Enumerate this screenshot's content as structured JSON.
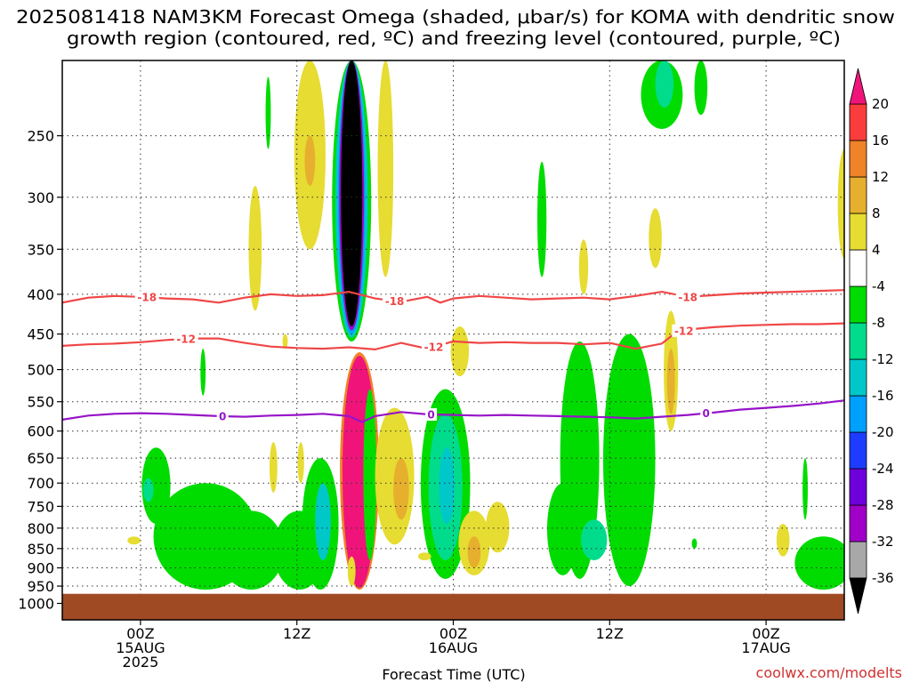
{
  "chart_data": {
    "type": "time-height contour",
    "title_line1": "2025081418 NAM3KM Forecast Omega (shaded, μbar/s) for KOMA with dendritic snow",
    "title_line2": "growth region (contoured, red, ºC) and freezing level (contoured, purple, ºC)",
    "xlabel": "Forecast Time (UTC)",
    "credit": "coolwx.com/modelts",
    "y_axis": {
      "scale": "log-pressure, inverted",
      "range_hPa": [
        1050,
        200
      ],
      "ticks": [
        250,
        300,
        350,
        400,
        450,
        500,
        550,
        600,
        650,
        700,
        750,
        800,
        850,
        900,
        950,
        1000
      ]
    },
    "x_axis": {
      "range_hours": [
        0,
        60
      ],
      "unit": "forecast hour from 2025081418",
      "gridlines_hours": [
        6,
        18,
        30,
        42,
        54
      ],
      "labels": [
        {
          "hour": 6,
          "lines": [
            "00Z",
            "15AUG",
            "2025"
          ]
        },
        {
          "hour": 18,
          "lines": [
            "12Z"
          ]
        },
        {
          "hour": 30,
          "lines": [
            "00Z",
            "16AUG"
          ]
        },
        {
          "hour": 42,
          "lines": [
            "12Z"
          ]
        },
        {
          "hour": 54,
          "lines": [
            "00Z",
            "17AUG"
          ]
        }
      ]
    },
    "colorbar": {
      "levels": [
        -36,
        -32,
        -28,
        -24,
        -20,
        -16,
        -12,
        -8,
        -4,
        4,
        8,
        12,
        16,
        20
      ],
      "bands": [
        {
          "from": -36,
          "to": -32,
          "color": "#a8a8a8"
        },
        {
          "from": -32,
          "to": -28,
          "color": "#a000c8"
        },
        {
          "from": -28,
          "to": -24,
          "color": "#6e00dc"
        },
        {
          "from": -24,
          "to": -20,
          "color": "#1e3cff"
        },
        {
          "from": -20,
          "to": -16,
          "color": "#00a0ff"
        },
        {
          "from": -16,
          "to": -12,
          "color": "#00c8c8"
        },
        {
          "from": -12,
          "to": -8,
          "color": "#00dc8c"
        },
        {
          "from": -8,
          "to": -4,
          "color": "#00dc00"
        },
        {
          "from": -4,
          "to": 4,
          "color": "#ffffff"
        },
        {
          "from": 4,
          "to": 8,
          "color": "#e6dc32"
        },
        {
          "from": 8,
          "to": 12,
          "color": "#e6af2d"
        },
        {
          "from": 12,
          "to": 16,
          "color": "#f08228"
        },
        {
          "from": 16,
          "to": 20,
          "color": "#fa3c3c"
        }
      ],
      "under_color": "#000000",
      "over_color": "#f0147a"
    },
    "omega_areas": [
      {
        "hour": 7.2,
        "p_top": 630,
        "p_bottom": 790,
        "half_width_h": 1.1,
        "value": -6
      },
      {
        "hour": 6.6,
        "p_top": 690,
        "p_bottom": 740,
        "half_width_h": 0.4,
        "value": -10
      },
      {
        "hour": 11.0,
        "p_top": 700,
        "p_bottom": 960,
        "half_width_h": 4.0,
        "value": -6
      },
      {
        "hour": 14.5,
        "p_top": 760,
        "p_bottom": 960,
        "half_width_h": 2.5,
        "value": -6
      },
      {
        "hour": 18.2,
        "p_top": 760,
        "p_bottom": 960,
        "half_width_h": 2.0,
        "value": -6
      },
      {
        "hour": 19.8,
        "p_top": 650,
        "p_bottom": 960,
        "half_width_h": 1.4,
        "value": -8
      },
      {
        "hour": 20.0,
        "p_top": 700,
        "p_bottom": 880,
        "half_width_h": 0.6,
        "value": -14
      },
      {
        "hour": 22.2,
        "p_top": 200,
        "p_bottom": 460,
        "half_width_h": 1.5,
        "value": -8
      },
      {
        "hour": 22.2,
        "p_top": 200,
        "p_bottom": 455,
        "half_width_h": 1.25,
        "value": -14
      },
      {
        "hour": 22.2,
        "p_top": 200,
        "p_bottom": 450,
        "half_width_h": 1.05,
        "value": -20
      },
      {
        "hour": 22.2,
        "p_top": 200,
        "p_bottom": 445,
        "half_width_h": 0.95,
        "value": -30
      },
      {
        "hour": 22.2,
        "p_top": 200,
        "p_bottom": 440,
        "half_width_h": 0.82,
        "value": -40
      },
      {
        "hour": 22.8,
        "p_top": 475,
        "p_bottom": 960,
        "half_width_h": 1.5,
        "value": 14
      },
      {
        "hour": 22.8,
        "p_top": 480,
        "p_bottom": 955,
        "half_width_h": 1.3,
        "value": 24
      },
      {
        "hour": 23.6,
        "p_top": 530,
        "p_bottom": 880,
        "half_width_h": 0.5,
        "value": -6
      },
      {
        "hour": 25.5,
        "p_top": 560,
        "p_bottom": 840,
        "half_width_h": 1.5,
        "value": 6
      },
      {
        "hour": 26.0,
        "p_top": 650,
        "p_bottom": 780,
        "half_width_h": 0.6,
        "value": 10
      },
      {
        "hour": 29.4,
        "p_top": 530,
        "p_bottom": 930,
        "half_width_h": 1.9,
        "value": -6
      },
      {
        "hour": 29.4,
        "p_top": 570,
        "p_bottom": 880,
        "half_width_h": 1.3,
        "value": -11
      },
      {
        "hour": 29.5,
        "p_top": 630,
        "p_bottom": 790,
        "half_width_h": 0.6,
        "value": -15
      },
      {
        "hour": 30.5,
        "p_top": 440,
        "p_bottom": 510,
        "half_width_h": 0.7,
        "value": 6
      },
      {
        "hour": 31.6,
        "p_top": 760,
        "p_bottom": 920,
        "half_width_h": 1.2,
        "value": 6
      },
      {
        "hour": 31.6,
        "p_top": 820,
        "p_bottom": 900,
        "half_width_h": 0.5,
        "value": 11
      },
      {
        "hour": 33.4,
        "p_top": 740,
        "p_bottom": 860,
        "half_width_h": 0.9,
        "value": 5
      },
      {
        "hour": 36.8,
        "p_top": 270,
        "p_bottom": 380,
        "half_width_h": 0.35,
        "value": -6
      },
      {
        "hour": 39.7,
        "p_top": 460,
        "p_bottom": 930,
        "half_width_h": 1.5,
        "value": -6
      },
      {
        "hour": 38.4,
        "p_top": 700,
        "p_bottom": 920,
        "half_width_h": 1.2,
        "value": -6
      },
      {
        "hour": 43.5,
        "p_top": 450,
        "p_bottom": 950,
        "half_width_h": 2.0,
        "value": -6
      },
      {
        "hour": 40.8,
        "p_top": 780,
        "p_bottom": 880,
        "half_width_h": 1.0,
        "value": -10
      },
      {
        "hour": 46.7,
        "p_top": 420,
        "p_bottom": 600,
        "half_width_h": 0.55,
        "value": 5
      },
      {
        "hour": 46.7,
        "p_top": 470,
        "p_bottom": 570,
        "half_width_h": 0.3,
        "value": 9
      },
      {
        "hour": 45.5,
        "p_top": 310,
        "p_bottom": 370,
        "half_width_h": 0.5,
        "value": 5
      },
      {
        "hour": 40.0,
        "p_top": 340,
        "p_bottom": 400,
        "half_width_h": 0.35,
        "value": 5
      },
      {
        "hour": 46.0,
        "p_top": 200,
        "p_bottom": 245,
        "half_width_h": 1.6,
        "value": -6
      },
      {
        "hour": 46.2,
        "p_top": 200,
        "p_bottom": 230,
        "half_width_h": 0.7,
        "value": -12
      },
      {
        "hour": 49.0,
        "p_top": 200,
        "p_bottom": 235,
        "half_width_h": 0.5,
        "value": -6
      },
      {
        "hour": 48.5,
        "p_top": 825,
        "p_bottom": 850,
        "half_width_h": 0.2,
        "value": -6
      },
      {
        "hour": 55.3,
        "p_top": 790,
        "p_bottom": 870,
        "half_width_h": 0.5,
        "value": 5
      },
      {
        "hour": 58.4,
        "p_top": 820,
        "p_bottom": 960,
        "half_width_h": 2.2,
        "value": -6
      },
      {
        "hour": 57.0,
        "p_top": 650,
        "p_bottom": 780,
        "half_width_h": 0.2,
        "value": -6
      },
      {
        "hour": 60.0,
        "p_top": 260,
        "p_bottom": 360,
        "half_width_h": 0.5,
        "value": 5
      },
      {
        "hour": 19.0,
        "p_top": 200,
        "p_bottom": 350,
        "half_width_h": 1.2,
        "value": 5
      },
      {
        "hour": 19.0,
        "p_top": 250,
        "p_bottom": 290,
        "half_width_h": 0.4,
        "value": 9
      },
      {
        "hour": 24.8,
        "p_top": 200,
        "p_bottom": 380,
        "half_width_h": 0.6,
        "value": 5
      },
      {
        "hour": 15.8,
        "p_top": 210,
        "p_bottom": 260,
        "half_width_h": 0.2,
        "value": -6
      },
      {
        "hour": 14.8,
        "p_top": 290,
        "p_bottom": 420,
        "half_width_h": 0.5,
        "value": 5
      },
      {
        "hour": 16.2,
        "p_top": 620,
        "p_bottom": 720,
        "half_width_h": 0.3,
        "value": 5
      },
      {
        "hour": 17.1,
        "p_top": 450,
        "p_bottom": 470,
        "half_width_h": 0.2,
        "value": 5
      },
      {
        "hour": 18.3,
        "p_top": 620,
        "p_bottom": 700,
        "half_width_h": 0.25,
        "value": 5
      },
      {
        "hour": 5.5,
        "p_top": 820,
        "p_bottom": 840,
        "half_width_h": 0.5,
        "value": 5
      },
      {
        "hour": 27.8,
        "p_top": 860,
        "p_bottom": 880,
        "half_width_h": 0.5,
        "value": 5
      },
      {
        "hour": 22.2,
        "p_top": 870,
        "p_bottom": 950,
        "half_width_h": 0.3,
        "value": 5
      },
      {
        "hour": 10.8,
        "p_top": 470,
        "p_bottom": 540,
        "half_width_h": 0.2,
        "value": -6
      }
    ],
    "contours": [
      {
        "kind": "dendritic",
        "value": -18,
        "label": "-18",
        "color": "#f04646",
        "points": [
          [
            0,
            410
          ],
          [
            2,
            404
          ],
          [
            4,
            402
          ],
          [
            6,
            403
          ],
          [
            8,
            405
          ],
          [
            10,
            406
          ],
          [
            12,
            410
          ],
          [
            14,
            404
          ],
          [
            16,
            400
          ],
          [
            18,
            402
          ],
          [
            20,
            401
          ],
          [
            22,
            397
          ],
          [
            24,
            405
          ],
          [
            26,
            409
          ],
          [
            28,
            403
          ],
          [
            29,
            410
          ],
          [
            30,
            405
          ],
          [
            32,
            402
          ],
          [
            34,
            404
          ],
          [
            36,
            406
          ],
          [
            38,
            405
          ],
          [
            40,
            404
          ],
          [
            42,
            406
          ],
          [
            44,
            402
          ],
          [
            46,
            397
          ],
          [
            48,
            403
          ],
          [
            50,
            401
          ],
          [
            52,
            399
          ],
          [
            54,
            398
          ],
          [
            56,
            397
          ],
          [
            58,
            396
          ],
          [
            60,
            395
          ]
        ],
        "labels_at_hours": [
          6.5,
          25.5,
          48
        ]
      },
      {
        "kind": "dendritic",
        "value": -12,
        "label": "-12",
        "color": "#f04646",
        "points": [
          [
            0,
            466
          ],
          [
            2,
            464
          ],
          [
            4,
            463
          ],
          [
            6,
            461
          ],
          [
            8,
            458
          ],
          [
            10,
            456
          ],
          [
            12,
            456
          ],
          [
            14,
            462
          ],
          [
            16,
            467
          ],
          [
            18,
            469
          ],
          [
            20,
            470
          ],
          [
            22,
            468
          ],
          [
            24,
            471
          ],
          [
            26,
            462
          ],
          [
            28,
            470
          ],
          [
            30,
            460
          ],
          [
            32,
            462
          ],
          [
            34,
            461
          ],
          [
            36,
            462
          ],
          [
            38,
            462
          ],
          [
            40,
            464
          ],
          [
            42,
            462
          ],
          [
            44,
            470
          ],
          [
            46,
            463
          ],
          [
            47,
            449
          ],
          [
            48,
            444
          ],
          [
            50,
            441
          ],
          [
            52,
            439
          ],
          [
            54,
            438
          ],
          [
            56,
            437
          ],
          [
            58,
            437
          ],
          [
            60,
            436
          ]
        ],
        "labels_at_hours": [
          9.5,
          28.5,
          47.7
        ]
      },
      {
        "kind": "freezing",
        "value": 0,
        "label": "0",
        "color": "#9614c8",
        "points": [
          [
            0,
            580
          ],
          [
            2,
            573
          ],
          [
            4,
            570
          ],
          [
            6,
            569
          ],
          [
            8,
            570
          ],
          [
            10,
            572
          ],
          [
            12,
            574
          ],
          [
            14,
            575
          ],
          [
            16,
            573
          ],
          [
            18,
            572
          ],
          [
            20,
            570
          ],
          [
            22,
            574
          ],
          [
            23,
            584
          ],
          [
            24,
            574
          ],
          [
            26,
            567
          ],
          [
            28,
            571
          ],
          [
            30,
            572
          ],
          [
            32,
            573
          ],
          [
            34,
            572
          ],
          [
            36,
            573
          ],
          [
            38,
            574
          ],
          [
            40,
            575
          ],
          [
            42,
            576
          ],
          [
            44,
            578
          ],
          [
            46,
            575
          ],
          [
            48,
            572
          ],
          [
            50,
            568
          ],
          [
            52,
            563
          ],
          [
            54,
            560
          ],
          [
            56,
            557
          ],
          [
            58,
            553
          ],
          [
            60,
            548
          ]
        ],
        "labels_at_hours": [
          12.3,
          28.3,
          49.4
        ]
      }
    ],
    "ground": {
      "p_top": 972,
      "color": "#a04a24"
    }
  }
}
